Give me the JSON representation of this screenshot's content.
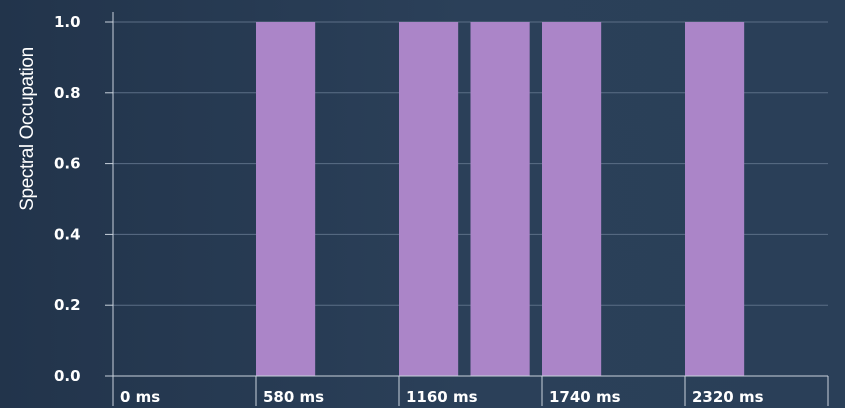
{
  "chart_data": {
    "type": "bar",
    "title": "",
    "xlabel": "",
    "ylabel": "Spectral Occupation",
    "unit": "ms",
    "x_ticks": [
      {
        "value": 0,
        "label": "0 ms"
      },
      {
        "value": 580,
        "label": "580 ms"
      },
      {
        "value": 1160,
        "label": "1160 ms"
      },
      {
        "value": 1740,
        "label": "1740 ms"
      },
      {
        "value": 2320,
        "label": "2320 ms"
      }
    ],
    "y_ticks": [
      {
        "value": 0.0,
        "label": "0.0"
      },
      {
        "value": 0.2,
        "label": "0.2"
      },
      {
        "value": 0.4,
        "label": "0.4"
      },
      {
        "value": 0.6,
        "label": "0.6"
      },
      {
        "value": 0.8,
        "label": "0.8"
      },
      {
        "value": 1.0,
        "label": "1.0"
      }
    ],
    "xlim": [
      0,
      2900
    ],
    "ylim": [
      0,
      1.0
    ],
    "grid": true,
    "bar_color": "#ab85c8",
    "background_color": "#2b4059",
    "bars": [
      {
        "start": 580,
        "end": 820,
        "value": 1.0
      },
      {
        "start": 1160,
        "end": 1400,
        "value": 1.0
      },
      {
        "start": 1450,
        "end": 1690,
        "value": 1.0
      },
      {
        "start": 1740,
        "end": 1980,
        "value": 1.0
      },
      {
        "start": 2320,
        "end": 2560,
        "value": 1.0
      }
    ]
  }
}
